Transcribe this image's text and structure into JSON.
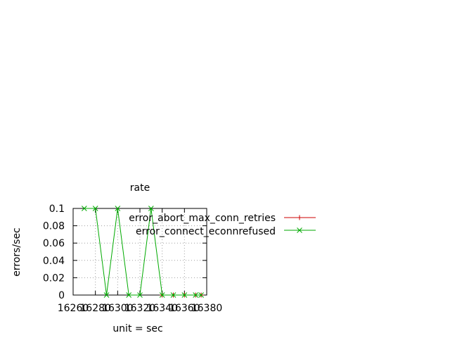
{
  "chart_data": {
    "type": "line",
    "title": "rate",
    "xlabel": "unit = sec",
    "ylabel": "errors/sec",
    "xlim": [
      16260,
      16380
    ],
    "ylim": [
      0,
      0.1
    ],
    "x_ticks": [
      "16260",
      "16280",
      "16300",
      "16320",
      "16340",
      "16360",
      "16380"
    ],
    "y_ticks": [
      "0",
      "0.02",
      "0.04",
      "0.06",
      "0.08",
      "0.1"
    ],
    "grid": true,
    "legend_position": "top-right",
    "series": [
      {
        "name": "error_abort_max_conn_retries",
        "color": "#cc0000",
        "marker": "plus",
        "x": [
          16340,
          16350,
          16360,
          16370,
          16375
        ],
        "y": [
          0,
          0,
          0,
          0,
          0
        ]
      },
      {
        "name": "error_connect_econnrefused",
        "color": "#00aa00",
        "marker": "x",
        "x": [
          16270,
          16280,
          16290,
          16300,
          16310,
          16320,
          16330,
          16340,
          16350,
          16360,
          16370,
          16375
        ],
        "y": [
          0.1,
          0.1,
          0,
          0.1,
          0,
          0,
          0.1,
          0,
          0,
          0,
          0,
          0
        ]
      }
    ]
  }
}
